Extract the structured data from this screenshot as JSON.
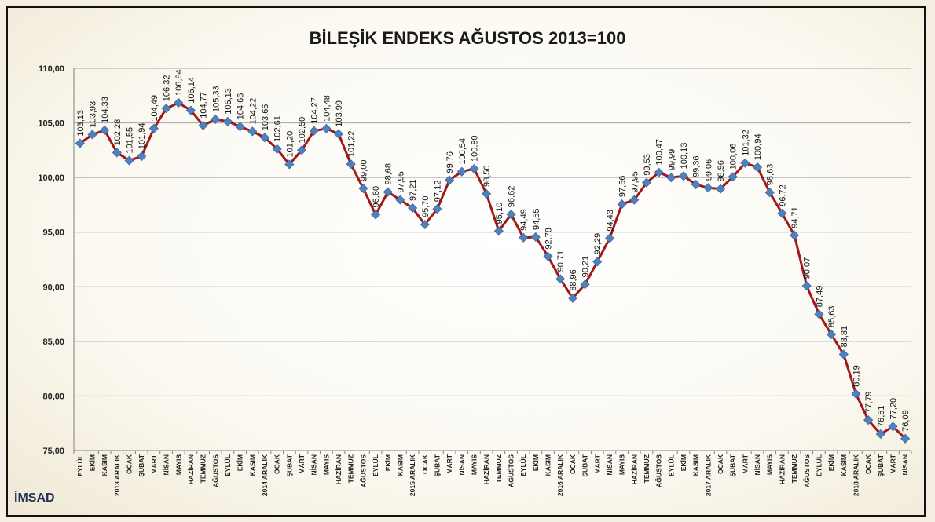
{
  "chart_data": {
    "type": "line",
    "title": "BİLEŞİK ENDEKS AĞUSTOS 2013=100",
    "ylim": [
      75,
      110
    ],
    "yticks": [
      "75,00",
      "80,00",
      "85,00",
      "90,00",
      "95,00",
      "100,00",
      "105,00",
      "110,00"
    ],
    "grid": true,
    "series_color": "#a01818",
    "marker_color": "#4f81bd",
    "categories": [
      "EYLÜL",
      "EKİM",
      "KASIM",
      "2013 ARALIK",
      "OCAK",
      "ŞUBAT",
      "MART",
      "NİSAN",
      "MAYIS",
      "HAZİRAN",
      "TEMMUZ",
      "AĞUSTOS",
      "EYLÜL",
      "EKİM",
      "KASIM",
      "2014 ARALIK",
      "OCAK",
      "ŞUBAT",
      "MART",
      "NİSAN",
      "MAYIS",
      "HAZİRAN",
      "TEMMUZ",
      "AĞUSTOS",
      "EYLÜL",
      "EKİM",
      "KASIM",
      "2015 ARALIK",
      "OCAK",
      "ŞUBAT",
      "MART",
      "NİSAN",
      "MAYIS",
      "HAZİRAN",
      "TEMMUZ",
      "AĞUSTOS",
      "EYLÜL",
      "EKİM",
      "KASIM",
      "2016 ARALIK",
      "OCAK",
      "ŞUBAT",
      "MART",
      "NİSAN",
      "MAYIS",
      "HAZİRAN",
      "TEMMUZ",
      "AĞUSTOS",
      "EYLÜL",
      "EKİM",
      "KASIM",
      "2017 ARALIK",
      "OCAK",
      "ŞUBAT",
      "MART",
      "NİSAN",
      "MAYIS",
      "HAZİRAN",
      "TEMMUZ",
      "AĞUSTOS",
      "EYLÜL",
      "EKİM",
      "KASIM",
      "2018 ARALIK",
      "OCAK",
      "ŞUBAT",
      "MART",
      "NİSAN"
    ],
    "values": [
      103.13,
      103.93,
      104.33,
      102.28,
      101.55,
      101.94,
      104.49,
      106.32,
      106.84,
      106.14,
      104.77,
      105.33,
      105.13,
      104.66,
      104.22,
      103.66,
      102.61,
      101.2,
      102.5,
      104.27,
      104.48,
      103.99,
      101.22,
      99.0,
      96.6,
      98.68,
      97.95,
      97.21,
      95.7,
      97.12,
      99.76,
      100.54,
      100.8,
      98.5,
      95.1,
      96.62,
      94.49,
      94.55,
      92.78,
      90.71,
      88.96,
      90.21,
      92.29,
      94.43,
      97.56,
      97.95,
      99.53,
      100.47,
      99.99,
      100.13,
      99.36,
      99.06,
      98.96,
      100.06,
      101.32,
      100.94,
      98.63,
      96.72,
      94.71,
      90.07,
      87.49,
      85.63,
      83.81,
      80.19,
      77.79,
      76.51,
      77.2,
      76.09
    ],
    "data_labels": [
      "103,13",
      "103,93",
      "104,33",
      "102,28",
      "101,55",
      "101,94",
      "104,49",
      "106,32",
      "106,84",
      "106,14",
      "104,77",
      "105,33",
      "105,13",
      "104,66",
      "104,22",
      "103,66",
      "102,61",
      "101,20",
      "102,50",
      "104,27",
      "104,48",
      "103,99",
      "101,22",
      "99,00",
      "96,60",
      "98,68",
      "97,95",
      "97,21",
      "95,70",
      "97,12",
      "99,76",
      "100,54",
      "100,80",
      "98,50",
      "95,10",
      "96,62",
      "94,49",
      "94,55",
      "92,78",
      "90,71",
      "88,96",
      "90,21",
      "92,29",
      "94,43",
      "97,56",
      "97,95",
      "99,53",
      "100,47",
      "99,99",
      "100,13",
      "99,36",
      "99,06",
      "98,96",
      "100,06",
      "101,32",
      "100,94",
      "98,63",
      "96,72",
      "94,71",
      "90,07",
      "87,49",
      "85,63",
      "83,81",
      "80,19",
      "77,79",
      "76,51",
      "77,20",
      "76,09"
    ]
  },
  "source": "İMSAD"
}
